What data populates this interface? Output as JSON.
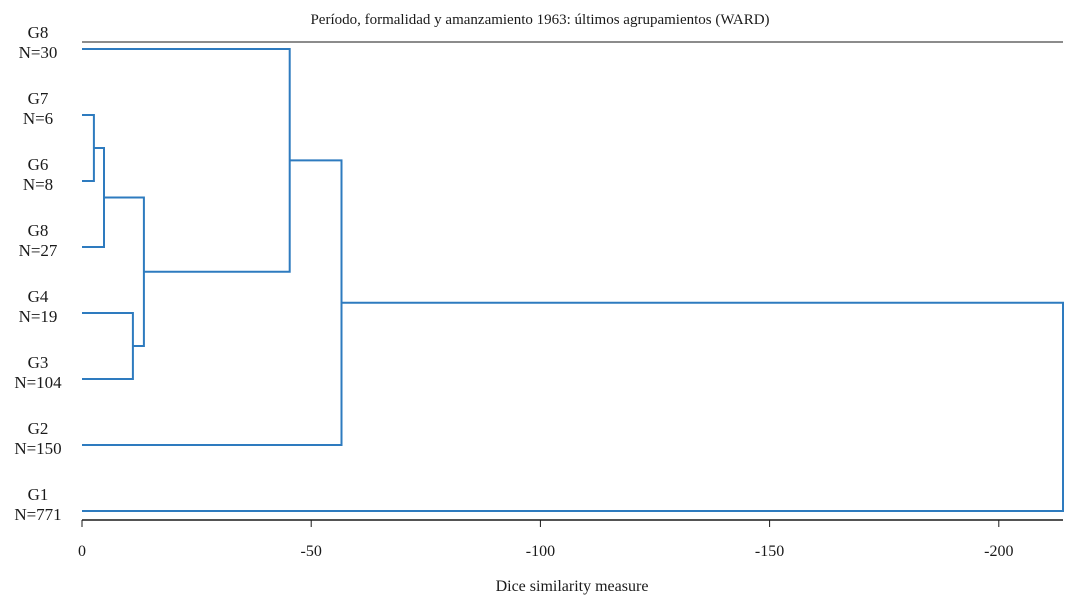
{
  "chart_data": {
    "type": "dendrogram",
    "title": "Período, formalidad y amanzamiento 1963: últimos agrupamientos (WARD)",
    "xlabel": "Dice similarity measure",
    "xlim": [
      0,
      -214
    ],
    "xticks": [
      0,
      -50,
      -100,
      -150,
      -200
    ],
    "tick_labels": [
      "0",
      "-50",
      "-100",
      "-150",
      "-200"
    ],
    "leaves": [
      {
        "name": "G8",
        "n": "N=30"
      },
      {
        "name": "G7",
        "n": "N=6"
      },
      {
        "name": "G6",
        "n": "N=8"
      },
      {
        "name": "G8",
        "n": "N=27"
      },
      {
        "name": "G4",
        "n": "N=19"
      },
      {
        "name": "G3",
        "n": "N=104"
      },
      {
        "name": "G2",
        "n": "N=150"
      },
      {
        "name": "G1",
        "n": "N=771"
      }
    ],
    "merges": [
      {
        "a": 1,
        "b": 2,
        "height": -2.6
      },
      {
        "a": 8,
        "b": 3,
        "height": -4.8
      },
      {
        "a": 4,
        "b": 5,
        "height": -11.1
      },
      {
        "a": 9,
        "b": 10,
        "height": -13.5
      },
      {
        "a": 0,
        "b": 11,
        "height": -45.3
      },
      {
        "a": 12,
        "b": 6,
        "height": -56.6
      },
      {
        "a": 13,
        "b": 7,
        "height": -214
      }
    ],
    "colors": {
      "branch": "#2e7bbf",
      "axis": "#1a1a1a",
      "text": "#1a1a1a"
    }
  }
}
